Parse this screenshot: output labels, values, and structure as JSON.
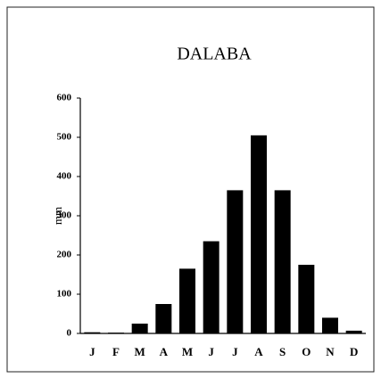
{
  "chart_data": {
    "type": "bar",
    "title": "DALABA",
    "y_label": "mm",
    "categories": [
      "J",
      "F",
      "M",
      "A",
      "M",
      "J",
      "J",
      "A",
      "S",
      "O",
      "N",
      "D"
    ],
    "values": [
      3,
      2,
      25,
      75,
      165,
      235,
      365,
      505,
      365,
      175,
      40,
      7
    ],
    "color": "#000000",
    "ylim": [
      0,
      600
    ],
    "yticks": [
      0,
      100,
      200,
      300,
      400,
      500,
      600
    ],
    "grid": false
  }
}
